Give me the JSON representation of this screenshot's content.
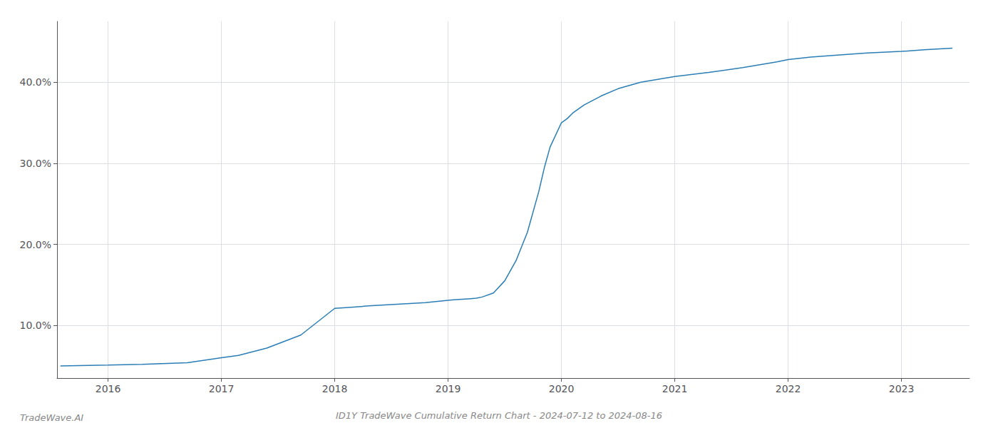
{
  "chart_data": {
    "type": "line",
    "title": "ID1Y TradeWave Cumulative Return Chart - 2024-07-12 to 2024-08-16",
    "annotations": [
      "TradeWave.AI"
    ],
    "x": [
      2015.58,
      2016.0,
      2016.3,
      2016.7,
      2017.0,
      2017.15,
      2017.4,
      2017.7,
      2018.0,
      2018.1,
      2018.3,
      2018.55,
      2018.8,
      2019.0,
      2019.05,
      2019.1,
      2019.15,
      2019.2,
      2019.25,
      2019.3,
      2019.4,
      2019.5,
      2019.6,
      2019.7,
      2019.8,
      2019.85,
      2019.9,
      2020.0,
      2020.05,
      2020.1,
      2020.2,
      2020.35,
      2020.5,
      2020.7,
      2021.0,
      2021.3,
      2021.6,
      2021.9,
      2022.0,
      2022.2,
      2022.5,
      2022.7,
      2023.0,
      2023.2,
      2023.45
    ],
    "values": [
      5.0,
      5.1,
      5.2,
      5.4,
      6.0,
      6.3,
      7.2,
      8.8,
      12.1,
      12.2,
      12.4,
      12.6,
      12.8,
      13.1,
      13.15,
      13.2,
      13.25,
      13.3,
      13.35,
      13.5,
      14.0,
      15.5,
      18.0,
      21.5,
      26.5,
      29.5,
      32.0,
      35.0,
      35.5,
      36.2,
      37.2,
      38.3,
      39.2,
      40.0,
      40.7,
      41.2,
      41.8,
      42.5,
      42.8,
      43.1,
      43.4,
      43.6,
      43.8,
      44.0,
      44.2
    ],
    "color": "#2a7eb5",
    "xlim": [
      2015.55,
      2023.6
    ],
    "xticks": [
      2016,
      2017,
      2018,
      2019,
      2020,
      2021,
      2022,
      2023
    ],
    "ylim": [
      3.5,
      47.5
    ],
    "yticks": [
      {
        "value": 10.0,
        "label": "10.0%"
      },
      {
        "value": 20.0,
        "label": "20.0%"
      },
      {
        "value": 30.0,
        "label": "30.0%"
      },
      {
        "value": 40.0,
        "label": "40.0%"
      }
    ],
    "grid": true
  }
}
